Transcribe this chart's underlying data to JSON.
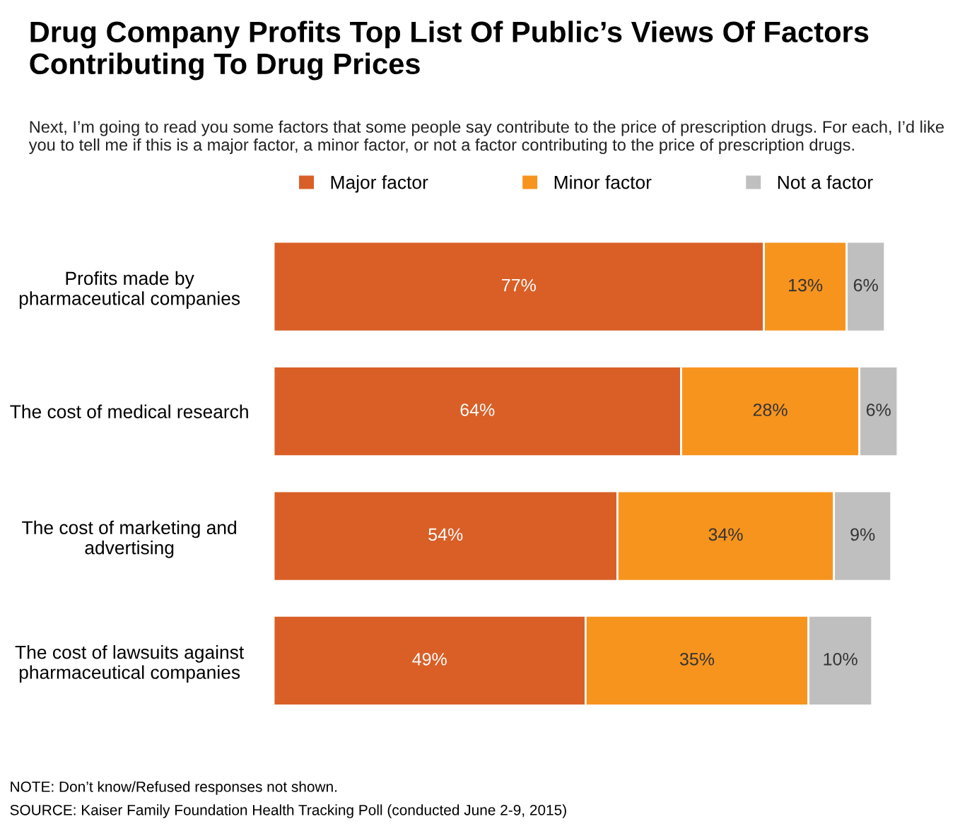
{
  "chart_data": {
    "type": "bar",
    "orientation": "horizontal",
    "stacked": true,
    "title": "Drug Company Profits Top List Of Public’s Views Of Factors Contributing To Drug Prices",
    "subtitle": "Next, I’m going to read you some factors that some people say contribute to the price of prescription drugs. For each, I’d like you to tell me if this is a major factor, a minor factor, or not a factor contributing to the price of prescription drugs.",
    "categories": [
      "Profits made by\npharmaceutical companies",
      "The cost of medical research",
      "The cost of marketing and\nadvertising",
      "The cost of lawsuits against\npharmaceutical companies"
    ],
    "series": [
      {
        "name": "Major factor",
        "color": "#d95f27",
        "values": [
          77,
          64,
          54,
          49
        ],
        "value_labels": [
          "77%",
          "64%",
          "54%",
          "49%"
        ]
      },
      {
        "name": "Minor factor",
        "color": "#f7941e",
        "values": [
          13,
          28,
          34,
          35
        ],
        "value_labels": [
          "13%",
          "28%",
          "34%",
          "35%"
        ]
      },
      {
        "name": "Not a factor",
        "color": "#bfbfbf",
        "values": [
          6,
          6,
          9,
          10
        ],
        "value_labels": [
          "6%",
          "6%",
          "9%",
          "10%"
        ]
      }
    ],
    "legend": "top",
    "tick_labels": "y",
    "grid": false,
    "annotations": [
      "NOTE: Don’t know/Refused responses not shown.",
      "SOURCE: Kaiser Family Foundation Health Tracking Poll (conducted June 2-9, 2015)"
    ]
  }
}
